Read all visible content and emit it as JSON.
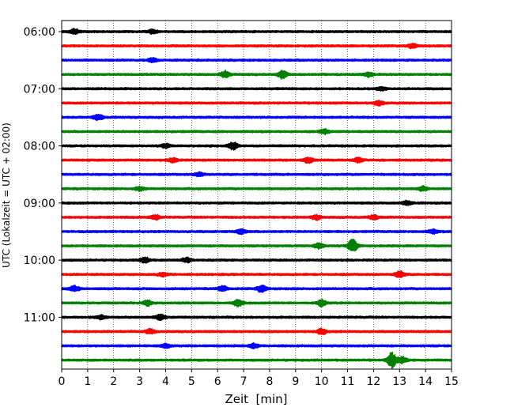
{
  "chart_data": {
    "type": "line",
    "title": "",
    "xlabel": "Zeit  [min]",
    "ylabel": "UTC (Lokalzeit = UTC + 02:00)",
    "xlim": [
      0,
      15
    ],
    "x_ticks": [
      0,
      1,
      2,
      3,
      4,
      5,
      6,
      7,
      8,
      9,
      10,
      11,
      12,
      13,
      14,
      15
    ],
    "y_tick_labels": [
      "06:00",
      "07:00",
      "08:00",
      "09:00",
      "10:00",
      "11:00"
    ],
    "grid_x": true,
    "grid_style": "dotted",
    "trace_interval_minutes": 15,
    "start_time_utc": "06:00",
    "trace_colors": [
      "#000000",
      "#ff0000",
      "#0000ff",
      "#008000"
    ],
    "traces": [
      {
        "start": "06:00",
        "color": "#000000",
        "events": [
          {
            "t": 0.5,
            "amp": 0.35
          },
          {
            "t": 3.5,
            "amp": 0.25
          }
        ]
      },
      {
        "start": "06:15",
        "color": "#ff0000",
        "events": [
          {
            "t": 13.5,
            "amp": 0.3
          }
        ]
      },
      {
        "start": "06:30",
        "color": "#0000ff",
        "events": [
          {
            "t": 3.5,
            "amp": 0.25
          }
        ]
      },
      {
        "start": "06:45",
        "color": "#008000",
        "events": [
          {
            "t": 6.3,
            "amp": 0.45
          },
          {
            "t": 8.5,
            "amp": 0.55
          },
          {
            "t": 11.8,
            "amp": 0.3
          }
        ]
      },
      {
        "start": "07:00",
        "color": "#000000",
        "events": [
          {
            "t": 12.3,
            "amp": 0.25
          }
        ]
      },
      {
        "start": "07:15",
        "color": "#ff0000",
        "events": [
          {
            "t": 12.2,
            "amp": 0.3
          }
        ]
      },
      {
        "start": "07:30",
        "color": "#0000ff",
        "events": [
          {
            "t": 1.4,
            "amp": 0.4
          }
        ]
      },
      {
        "start": "07:45",
        "color": "#008000",
        "events": [
          {
            "t": 10.1,
            "amp": 0.3
          }
        ]
      },
      {
        "start": "08:00",
        "color": "#000000",
        "events": [
          {
            "t": 6.6,
            "amp": 0.5
          },
          {
            "t": 4.0,
            "amp": 0.25
          }
        ]
      },
      {
        "start": "08:15",
        "color": "#ff0000",
        "events": [
          {
            "t": 4.3,
            "amp": 0.3
          },
          {
            "t": 9.5,
            "amp": 0.35
          },
          {
            "t": 11.4,
            "amp": 0.3
          }
        ]
      },
      {
        "start": "08:30",
        "color": "#0000ff",
        "events": [
          {
            "t": 5.3,
            "amp": 0.25
          }
        ]
      },
      {
        "start": "08:45",
        "color": "#008000",
        "events": [
          {
            "t": 3.0,
            "amp": 0.25
          },
          {
            "t": 13.9,
            "amp": 0.3
          }
        ]
      },
      {
        "start": "09:00",
        "color": "#000000",
        "events": [
          {
            "t": 13.3,
            "amp": 0.25
          }
        ]
      },
      {
        "start": "09:15",
        "color": "#ff0000",
        "events": [
          {
            "t": 3.6,
            "amp": 0.3
          },
          {
            "t": 9.8,
            "amp": 0.3
          },
          {
            "t": 12.0,
            "amp": 0.3
          }
        ]
      },
      {
        "start": "09:30",
        "color": "#0000ff",
        "events": [
          {
            "t": 6.9,
            "amp": 0.3
          },
          {
            "t": 14.3,
            "amp": 0.25
          }
        ]
      },
      {
        "start": "09:45",
        "color": "#008000",
        "events": [
          {
            "t": 11.2,
            "amp": 0.9
          },
          {
            "t": 9.9,
            "amp": 0.35
          }
        ]
      },
      {
        "start": "10:00",
        "color": "#000000",
        "events": [
          {
            "t": 3.2,
            "amp": 0.35
          },
          {
            "t": 4.8,
            "amp": 0.3
          }
        ]
      },
      {
        "start": "10:15",
        "color": "#ff0000",
        "events": [
          {
            "t": 13.0,
            "amp": 0.45
          },
          {
            "t": 3.9,
            "amp": 0.25
          }
        ]
      },
      {
        "start": "10:30",
        "color": "#0000ff",
        "events": [
          {
            "t": 0.5,
            "amp": 0.35
          },
          {
            "t": 6.2,
            "amp": 0.35
          },
          {
            "t": 7.7,
            "amp": 0.45
          }
        ]
      },
      {
        "start": "10:45",
        "color": "#008000",
        "events": [
          {
            "t": 3.3,
            "amp": 0.35
          },
          {
            "t": 6.8,
            "amp": 0.45
          },
          {
            "t": 10.0,
            "amp": 0.45
          }
        ]
      },
      {
        "start": "11:00",
        "color": "#000000",
        "events": [
          {
            "t": 3.8,
            "amp": 0.35
          },
          {
            "t": 1.5,
            "amp": 0.25
          }
        ]
      },
      {
        "start": "11:15",
        "color": "#ff0000",
        "events": [
          {
            "t": 10.0,
            "amp": 0.4
          },
          {
            "t": 3.4,
            "amp": 0.3
          }
        ]
      },
      {
        "start": "11:30",
        "color": "#0000ff",
        "events": [
          {
            "t": 7.4,
            "amp": 0.3
          },
          {
            "t": 4.0,
            "amp": 0.25
          }
        ]
      },
      {
        "start": "11:45",
        "color": "#008000",
        "events": [
          {
            "t": 12.7,
            "amp": 1.0
          },
          {
            "t": 13.1,
            "amp": 0.4
          }
        ]
      }
    ]
  }
}
